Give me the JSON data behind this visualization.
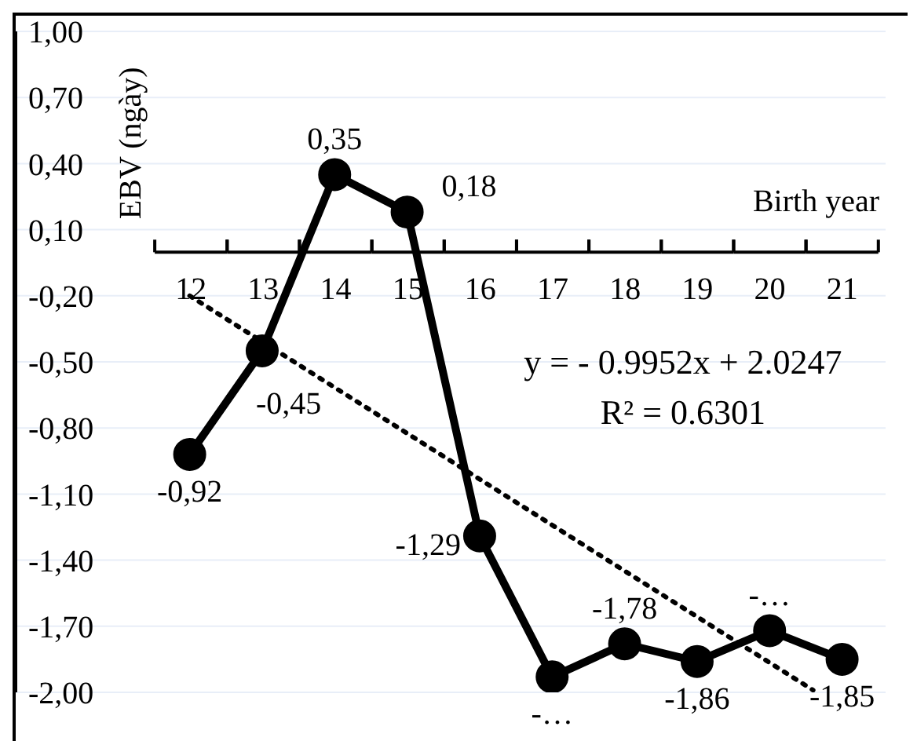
{
  "chart_data": {
    "type": "line",
    "xlabel": "Birth year",
    "ylabel": "EBV (ngày)",
    "x": [
      12,
      13,
      14,
      15,
      16,
      17,
      18,
      19,
      20,
      21
    ],
    "xlim": [
      9.6,
      21.6
    ],
    "xticks": [
      12,
      13,
      14,
      15,
      16,
      17,
      18,
      19,
      20,
      21
    ],
    "ylim": [
      -2,
      1
    ],
    "yticks": [
      {
        "value": 1,
        "label": "1,00"
      },
      {
        "value": 0.7,
        "label": "0,70"
      },
      {
        "value": 0.4,
        "label": "0,40"
      },
      {
        "value": 0.1,
        "label": "0,10"
      },
      {
        "value": -0.2,
        "label": "-0,20"
      },
      {
        "value": -0.5,
        "label": "-0,50"
      },
      {
        "value": -0.8,
        "label": "-0,80"
      },
      {
        "value": -1.1,
        "label": "-1,10"
      },
      {
        "value": -1.4,
        "label": "-1,40"
      },
      {
        "value": -1.7,
        "label": "-1,70"
      },
      {
        "value": -2,
        "label": "-2,00"
      }
    ],
    "grid": "y",
    "marker": "circle",
    "line_style": "solid",
    "legend": false,
    "series": [
      {
        "color": "#000000",
        "values": [
          -0.92,
          -0.45,
          0.35,
          0.18,
          -1.29,
          -1.93,
          -1.78,
          -1.86,
          -1.72,
          -1.85
        ],
        "value_labels": [
          "-0,92",
          "-0,45",
          "0,35",
          "0,18",
          "-1,29",
          "-…",
          "-1,78",
          "-1,86",
          "-…",
          "-1,85"
        ]
      },
      {
        "type": "line",
        "color": "#000000",
        "x": [
          12,
          20.6
        ],
        "values": [
          -0.2,
          -1.99
        ],
        "line_style": "dotted",
        "marker": "none"
      }
    ],
    "annotations": [
      "y = - 0.9952x + 2.0247",
      "R² = 0.6301"
    ]
  }
}
